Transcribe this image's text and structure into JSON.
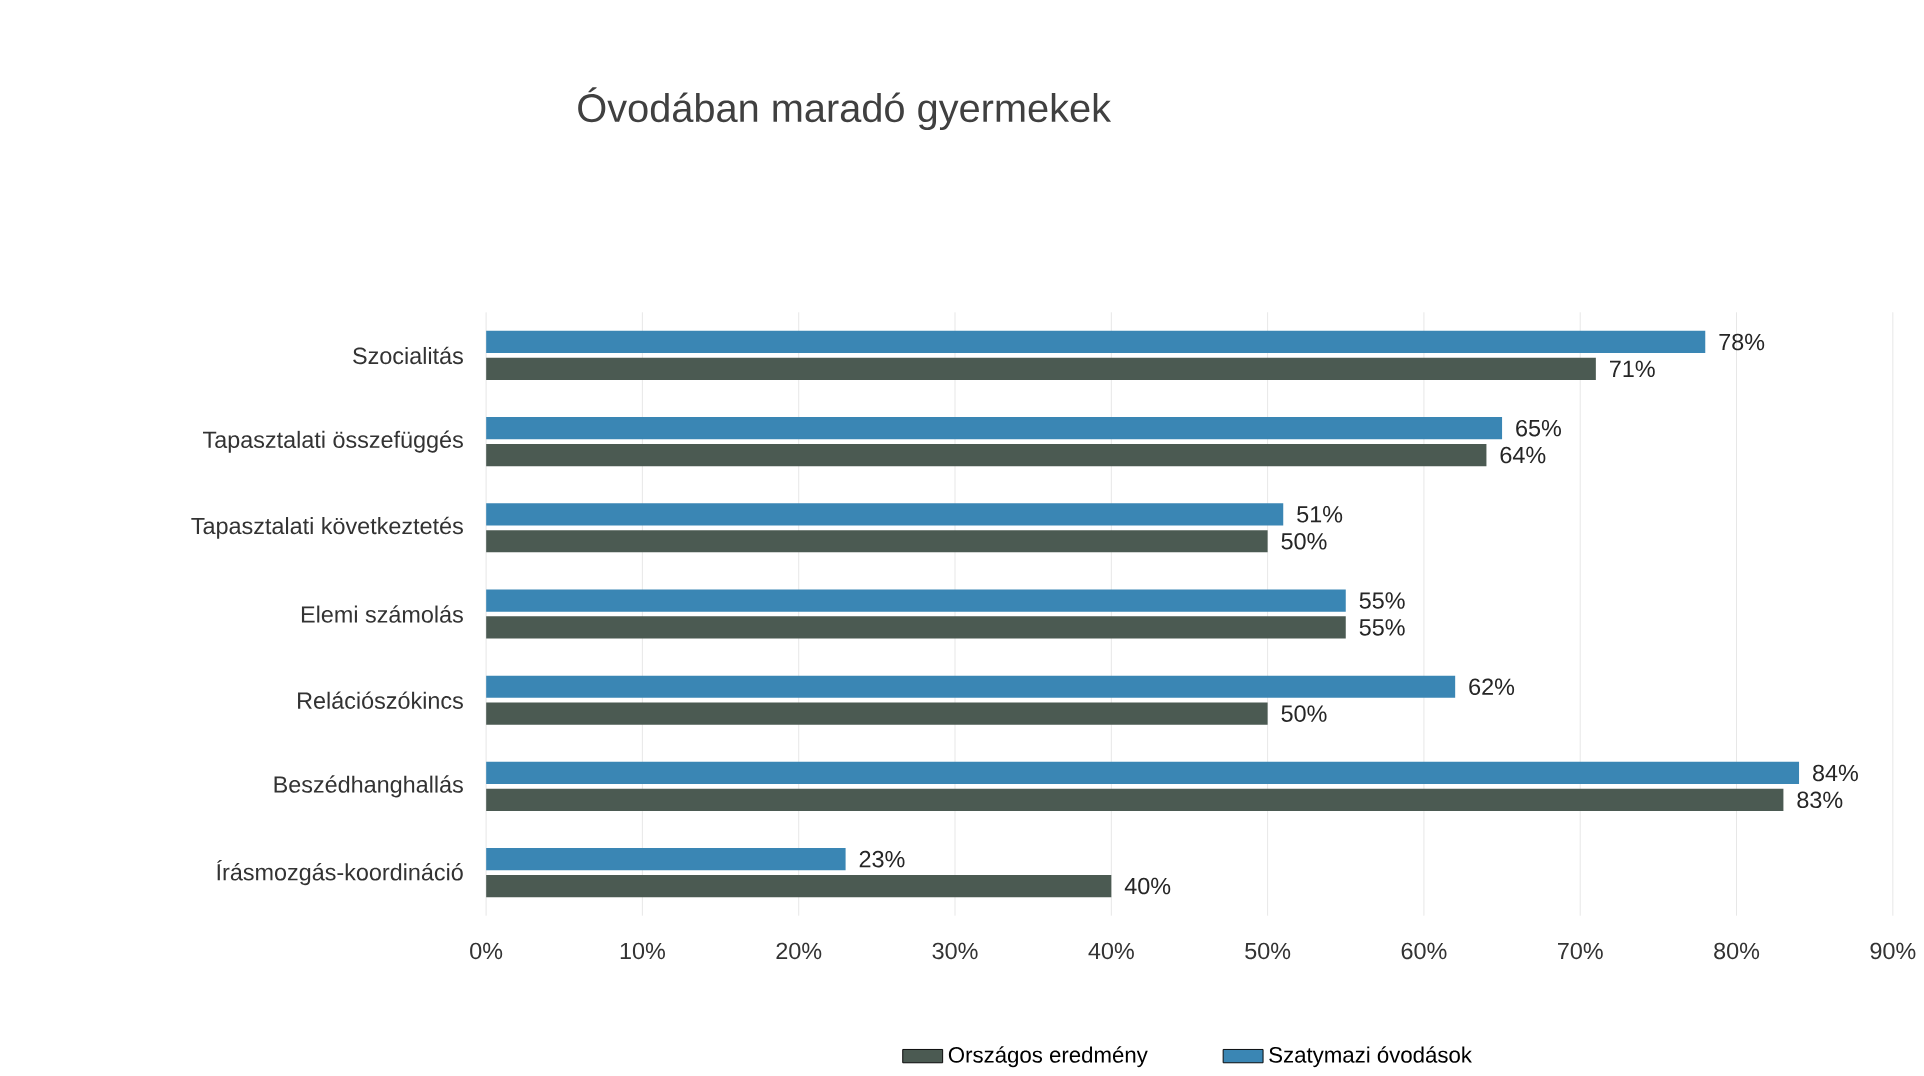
{
  "chart_data": {
    "type": "bar",
    "orientation": "horizontal",
    "title": "Óvodában maradó gyermekek",
    "categories": [
      "Szocialitás",
      "Tapasztalati összefüggés",
      "Tapasztalati következtetés",
      "Elemi számolás",
      "Relációszókincs",
      "Beszédhanghallás",
      "Írásmozgás-koordináció"
    ],
    "series": [
      {
        "name": "Országos eredmény",
        "color": "#4b5a52",
        "values": [
          71,
          64,
          50,
          55,
          50,
          83,
          40
        ],
        "value_labels": [
          "71%",
          "64%",
          "50%",
          "55%",
          "50%",
          "83%",
          "40%"
        ]
      },
      {
        "name": "Szatymazi óvodások",
        "color": "#3a86b4",
        "values": [
          78,
          65,
          51,
          55,
          62,
          84,
          23
        ],
        "value_labels": [
          "78%",
          "65%",
          "51%",
          "55%",
          "62%",
          "84%",
          "23%"
        ]
      }
    ],
    "xlim": [
      0,
      90
    ],
    "xticks": [
      {
        "value": 0,
        "label": "0%"
      },
      {
        "value": 10,
        "label": "10%"
      },
      {
        "value": 20,
        "label": "20%"
      },
      {
        "value": 30,
        "label": "30%"
      },
      {
        "value": 40,
        "label": "40%"
      },
      {
        "value": 50,
        "label": "50%"
      },
      {
        "value": 60,
        "label": "60%"
      },
      {
        "value": 70,
        "label": "70%"
      },
      {
        "value": 80,
        "label": "80%"
      },
      {
        "value": 90,
        "label": "90%"
      }
    ],
    "grid": "x",
    "legend": "bottom"
  }
}
